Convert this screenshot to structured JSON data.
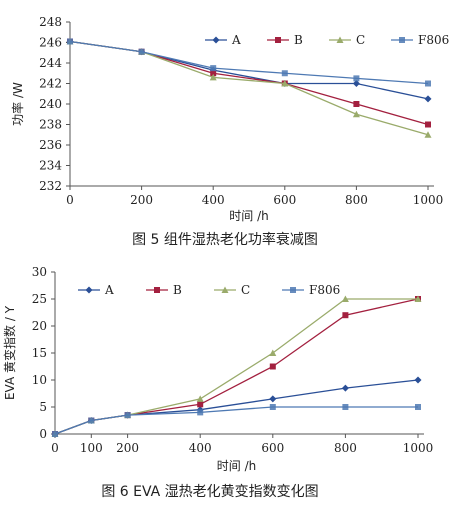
{
  "chart_data": [
    {
      "type": "line",
      "caption": "图 5 组件湿热老化功率衰减图",
      "xlabel": "时间 /h",
      "ylabel": "功率 /W",
      "x": [
        0,
        200,
        400,
        600,
        800,
        1000
      ],
      "xlim": [
        0,
        1000
      ],
      "ylim": [
        232,
        248
      ],
      "xticks": [
        0,
        200,
        400,
        600,
        800,
        1000
      ],
      "yticks": [
        232,
        234,
        236,
        238,
        240,
        242,
        244,
        246,
        248
      ],
      "grid": false,
      "legend_position": "top-right",
      "series": [
        {
          "name": "A",
          "values": [
            246.1,
            245.1,
            243.3,
            242.0,
            242.0,
            240.5
          ],
          "color": "#2a4f97",
          "marker": "diamond"
        },
        {
          "name": "B",
          "values": [
            246.1,
            245.1,
            243.0,
            242.0,
            240.0,
            238.0
          ],
          "color": "#a3203f",
          "marker": "square"
        },
        {
          "name": "C",
          "values": [
            246.1,
            245.1,
            242.6,
            242.0,
            239.0,
            237.0
          ],
          "color": "#9aab6b",
          "marker": "triangle"
        },
        {
          "name": "F806",
          "values": [
            246.1,
            245.1,
            243.5,
            243.0,
            242.5,
            242.0
          ],
          "color": "#4e79b3",
          "marker": "x-square"
        }
      ]
    },
    {
      "type": "line",
      "caption": "图 6 EVA 湿热老化黄变指数变化图",
      "xlabel": "时间 /h",
      "ylabel": "EVA 黄变指数 / Y",
      "x": [
        0,
        100,
        200,
        400,
        600,
        800,
        1000
      ],
      "xlim": [
        0,
        1000
      ],
      "ylim": [
        0,
        30
      ],
      "xticks": [
        0,
        100,
        200,
        400,
        600,
        800,
        1000
      ],
      "yticks": [
        0,
        5,
        10,
        15,
        20,
        25,
        30
      ],
      "grid": false,
      "legend_position": "top-left",
      "series": [
        {
          "name": "A",
          "values": [
            0,
            2.5,
            3.5,
            4.5,
            6.5,
            8.5,
            10
          ],
          "color": "#2a4f97",
          "marker": "diamond"
        },
        {
          "name": "B",
          "values": [
            0,
            2.5,
            3.5,
            5.5,
            12.5,
            22,
            25
          ],
          "color": "#a3203f",
          "marker": "square"
        },
        {
          "name": "C",
          "values": [
            0,
            2.5,
            3.5,
            6.5,
            15,
            25,
            25
          ],
          "color": "#9aab6b",
          "marker": "triangle"
        },
        {
          "name": "F806",
          "values": [
            0,
            2.5,
            3.5,
            4,
            5,
            5,
            5
          ],
          "color": "#4e79b3",
          "marker": "x-square"
        }
      ]
    }
  ]
}
